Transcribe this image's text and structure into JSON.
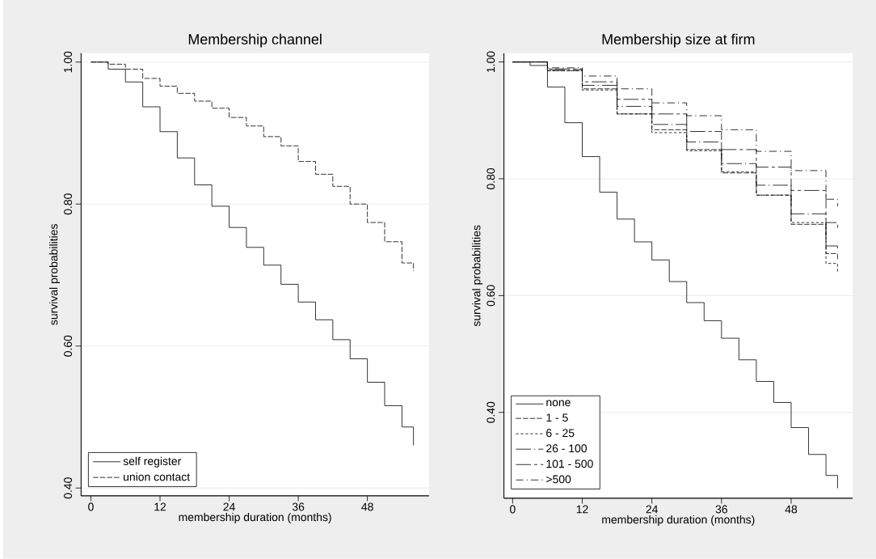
{
  "chart_data": [
    {
      "type": "step",
      "title": "Membership channel",
      "xlabel": "membership duration (months)",
      "ylabel": "survival probabilities",
      "xlim": [
        -1.7,
        58.7
      ],
      "ylim": [
        0.389,
        1.0125
      ],
      "xticks": [
        0,
        12,
        24,
        36,
        48
      ],
      "yticks": [
        {
          "value": 0.4,
          "label": "0.40"
        },
        {
          "value": 0.6,
          "label": "0.60"
        },
        {
          "value": 0.8,
          "label": "0.80"
        },
        {
          "value": 1.0,
          "label": "1.00"
        }
      ],
      "grid": "y",
      "legend": "bottom left",
      "series": [
        {
          "name": "self register",
          "color": "#000000",
          "line_style": "solid",
          "x": [
            0,
            3,
            6,
            9,
            12,
            15,
            18,
            21,
            24,
            27,
            30,
            33,
            36,
            39,
            42,
            45,
            48,
            51,
            54,
            56
          ],
          "values": [
            1.0,
            0.99,
            0.972,
            0.937,
            0.902,
            0.865,
            0.827,
            0.797,
            0.767,
            0.739,
            0.714,
            0.687,
            0.662,
            0.637,
            0.609,
            0.582,
            0.549,
            0.516,
            0.486,
            0.46
          ]
        },
        {
          "name": "union contact",
          "color": "#000000",
          "line_style": "dashed",
          "x": [
            0,
            3,
            6,
            9,
            12,
            15,
            18,
            21,
            24,
            27,
            30,
            33,
            36,
            39,
            42,
            45,
            48,
            51,
            54,
            56
          ],
          "values": [
            1.0,
            0.997,
            0.99,
            0.977,
            0.966,
            0.956,
            0.945,
            0.935,
            0.922,
            0.91,
            0.895,
            0.882,
            0.86,
            0.842,
            0.825,
            0.8,
            0.774,
            0.747,
            0.717,
            0.706
          ]
        }
      ]
    },
    {
      "type": "step",
      "title": "Membership size at firm",
      "xlabel": "membership duration (months)",
      "ylabel": "survival probabilities",
      "xlim": [
        -1.5,
        58.6
      ],
      "ylim": [
        0.253,
        1.015
      ],
      "xticks": [
        0,
        12,
        24,
        36,
        48
      ],
      "yticks": [
        {
          "value": 0.4,
          "label": "0.40"
        },
        {
          "value": 0.6,
          "label": "0.60"
        },
        {
          "value": 0.8,
          "label": "0.80"
        },
        {
          "value": 1.0,
          "label": "1.00"
        }
      ],
      "grid": "y",
      "legend": "bottom left",
      "series": [
        {
          "name": "none",
          "color": "#000000",
          "line_style": "solid",
          "x": [
            0,
            3,
            6,
            9,
            12,
            15,
            18,
            21,
            24,
            27,
            30,
            33,
            36,
            39,
            42,
            45,
            48,
            51,
            54,
            56
          ],
          "values": [
            1.0,
            0.994,
            0.957,
            0.896,
            0.838,
            0.777,
            0.731,
            0.692,
            0.661,
            0.624,
            0.588,
            0.557,
            0.527,
            0.49,
            0.453,
            0.417,
            0.374,
            0.328,
            0.292,
            0.27
          ]
        },
        {
          "name": "1 - 5",
          "color": "#000000",
          "line_style": "dashed",
          "x": [
            0,
            6,
            12,
            18,
            24,
            30,
            36,
            42,
            48,
            54,
            56
          ],
          "values": [
            1.0,
            0.985,
            0.954,
            0.911,
            0.884,
            0.85,
            0.81,
            0.772,
            0.722,
            0.672,
            0.66
          ]
        },
        {
          "name": "6 - 25",
          "color": "#000000",
          "line_style": "dotted",
          "x": [
            0,
            6,
            12,
            18,
            24,
            30,
            36,
            42,
            48,
            54,
            56
          ],
          "values": [
            1.0,
            0.985,
            0.952,
            0.911,
            0.879,
            0.848,
            0.812,
            0.772,
            0.725,
            0.655,
            0.64
          ]
        },
        {
          "name": "26 - 100",
          "color": "#000000",
          "line_style": "longdash-dot",
          "x": [
            0,
            6,
            12,
            18,
            24,
            30,
            36,
            42,
            48,
            54,
            56
          ],
          "values": [
            1.0,
            0.987,
            0.96,
            0.924,
            0.893,
            0.863,
            0.826,
            0.789,
            0.74,
            0.685,
            0.675
          ]
        },
        {
          "name": "101 - 500",
          "color": "#000000",
          "line_style": "longdash-dash",
          "x": [
            0,
            6,
            12,
            18,
            24,
            30,
            36,
            42,
            48,
            54,
            56
          ],
          "values": [
            1.0,
            0.988,
            0.966,
            0.936,
            0.911,
            0.881,
            0.85,
            0.82,
            0.78,
            0.725,
            0.716
          ]
        },
        {
          "name": ">500",
          "color": "#000000",
          "line_style": "dashdot",
          "x": [
            0,
            6,
            12,
            18,
            24,
            30,
            36,
            42,
            48,
            54,
            56
          ],
          "values": [
            1.0,
            0.99,
            0.976,
            0.954,
            0.93,
            0.908,
            0.884,
            0.847,
            0.814,
            0.765,
            0.753
          ]
        }
      ]
    }
  ]
}
